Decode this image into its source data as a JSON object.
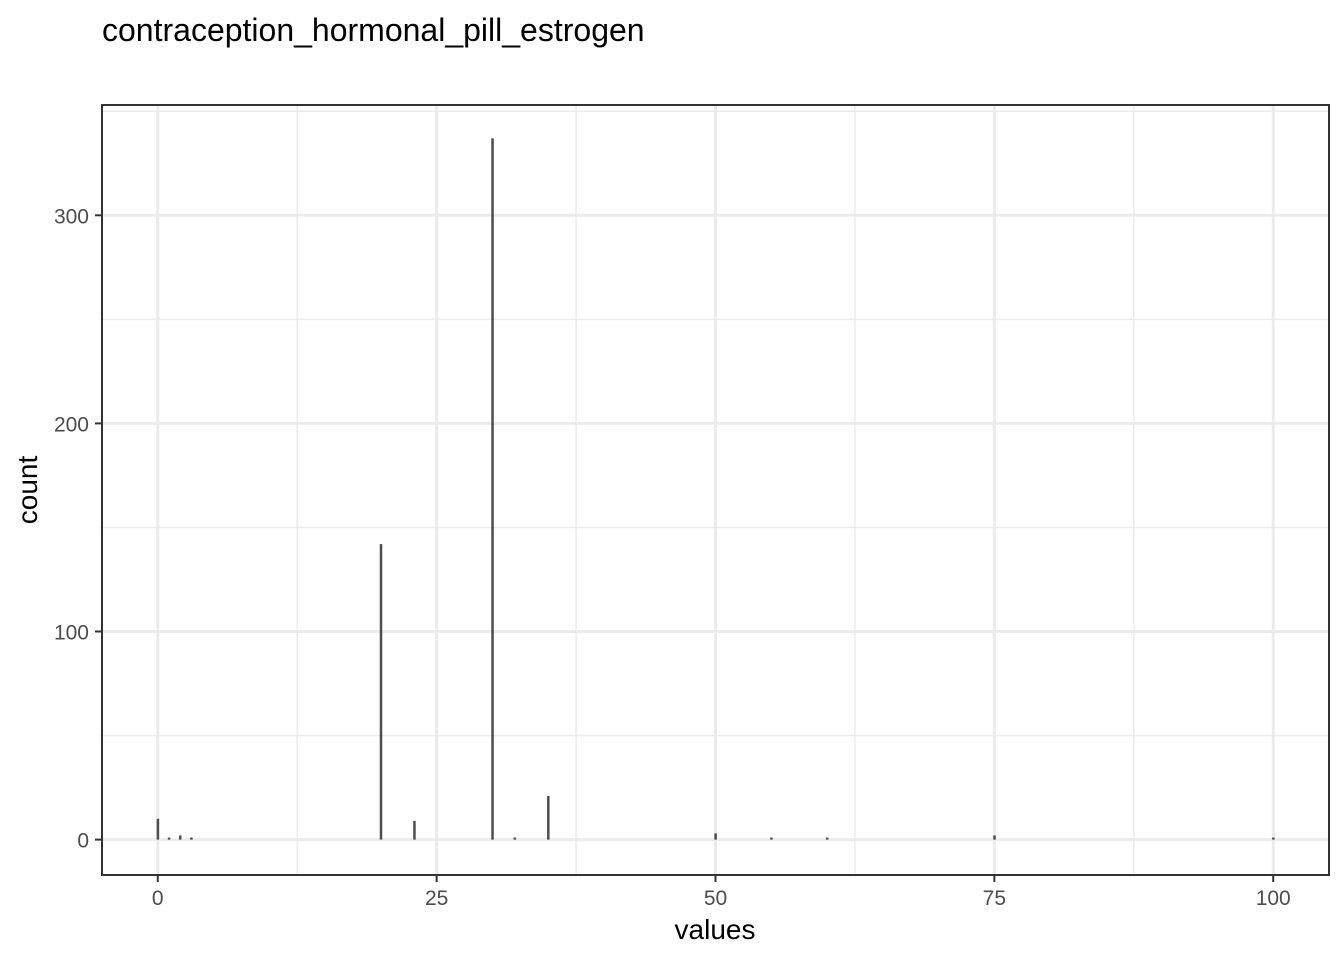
{
  "chart_data": {
    "type": "bar",
    "title": "contraception_hormonal_pill_estrogen",
    "xlabel": "values",
    "ylabel": "count",
    "xlim": [
      -5,
      105
    ],
    "ylim": [
      -17,
      353
    ],
    "x_ticks": [
      0,
      25,
      50,
      75,
      100
    ],
    "x_minor_ticks": [
      12.5,
      37.5,
      62.5,
      87.5
    ],
    "y_ticks": [
      0,
      100,
      200,
      300
    ],
    "y_minor_ticks": [
      50,
      150,
      250,
      350
    ],
    "grid": true,
    "bar_color": "#4d4d4d",
    "grid_color": "#ebebeb",
    "bar_width": 0.2,
    "bars": [
      {
        "x": 0,
        "y": 10
      },
      {
        "x": 1,
        "y": 1
      },
      {
        "x": 2,
        "y": 2
      },
      {
        "x": 3,
        "y": 1
      },
      {
        "x": 20,
        "y": 142
      },
      {
        "x": 23,
        "y": 9
      },
      {
        "x": 30,
        "y": 337
      },
      {
        "x": 32,
        "y": 1
      },
      {
        "x": 35,
        "y": 21
      },
      {
        "x": 50,
        "y": 3
      },
      {
        "x": 55,
        "y": 1
      },
      {
        "x": 60,
        "y": 1
      },
      {
        "x": 75,
        "y": 2
      },
      {
        "x": 100,
        "y": 1
      }
    ]
  }
}
